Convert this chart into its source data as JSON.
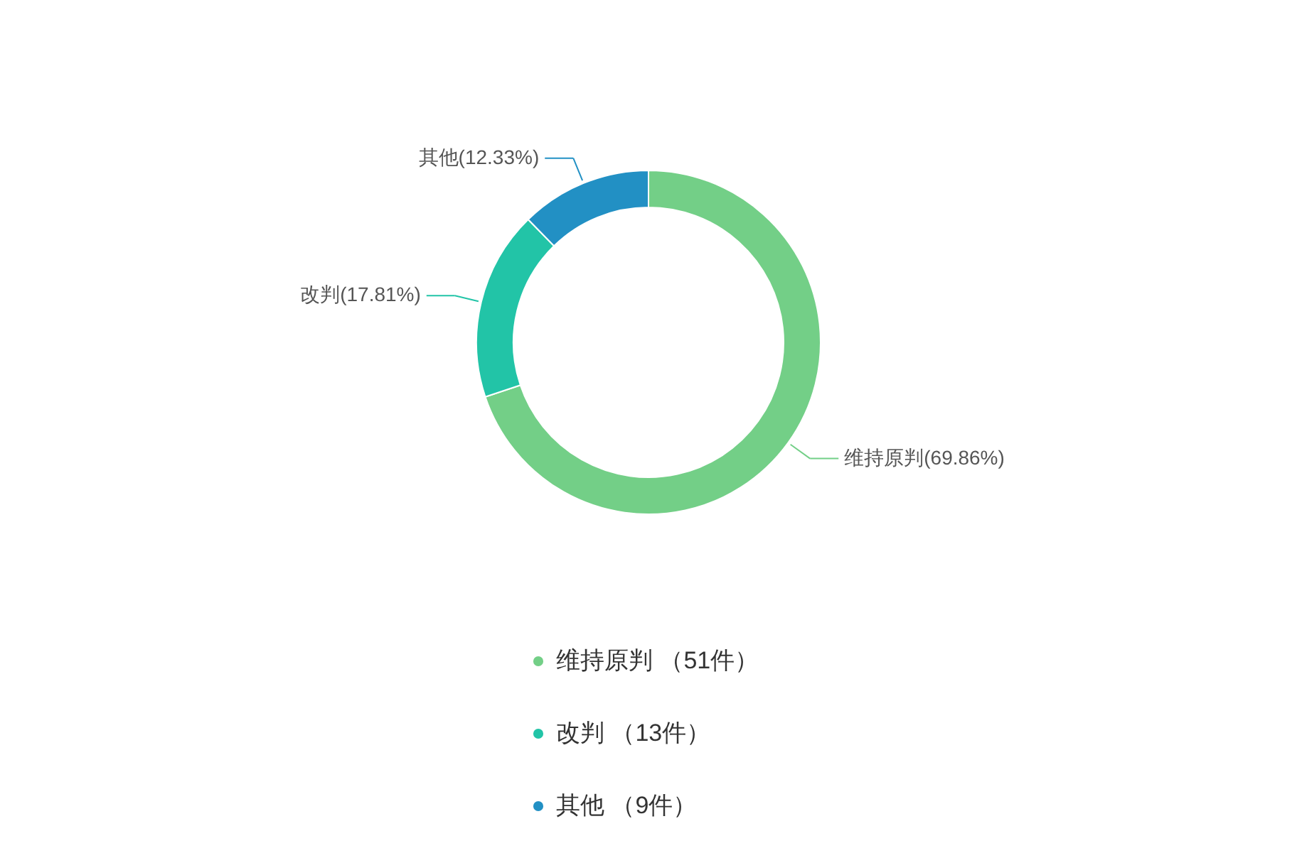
{
  "chart_data": {
    "type": "donut",
    "categories": [
      "维持原判 （51件）",
      "改判 （13件）",
      "其他 （9件）"
    ],
    "values": [
      51,
      13,
      9
    ],
    "colors": [
      "#73cf87",
      "#22c4a7",
      "#2290c4"
    ],
    "value_labels": [
      "维持原判(69.86%)",
      "改判(17.81%)",
      "其他(12.33%)"
    ],
    "legend": "bottom"
  }
}
